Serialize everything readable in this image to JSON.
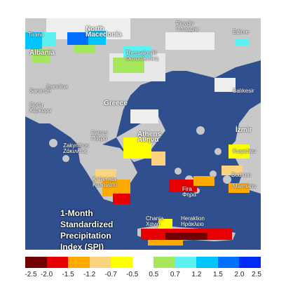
{
  "map": {
    "title_lines": [
      "1-Month",
      "Standardized",
      "Precipitation",
      "Index (SPI)"
    ],
    "places": [
      {
        "id": "plovdiv",
        "lines": [
          "Plovdiv",
          "Пловдив"
        ]
      },
      {
        "id": "north-macedonia",
        "lines": [
          "North",
          "Macedonia"
        ],
        "big": true
      },
      {
        "id": "edirne",
        "lines": [
          "Edirne"
        ]
      },
      {
        "id": "tirana",
        "lines": [
          "Tirana"
        ]
      },
      {
        "id": "albania",
        "lines": [
          "Albania"
        ],
        "big": true
      },
      {
        "id": "thessaloniki",
        "lines": [
          "Thessaloniki",
          "Θεσσαλονίκη"
        ]
      },
      {
        "id": "ioannina",
        "lines": [
          "Ioannina"
        ]
      },
      {
        "id": "sarande",
        "lines": [
          "Sarandë"
        ]
      },
      {
        "id": "corfu",
        "lines": [
          "Corfu",
          "Κέρκυρα"
        ]
      },
      {
        "id": "greece",
        "lines": [
          "Greece"
        ],
        "big": true
      },
      {
        "id": "balikesir",
        "lines": [
          "Balıkesir"
        ]
      },
      {
        "id": "izmir",
        "lines": [
          "İzmir"
        ],
        "big": true
      },
      {
        "id": "patras",
        "lines": [
          "Patras",
          "Πάτρα"
        ]
      },
      {
        "id": "athens",
        "lines": [
          "Athens",
          "Αθήνα"
        ],
        "big": true
      },
      {
        "id": "zakynthos",
        "lines": [
          "Zakynthos",
          "Ζάκυνθος"
        ]
      },
      {
        "id": "kusadasi",
        "lines": [
          "Kuşadası"
        ]
      },
      {
        "id": "kalamata",
        "lines": [
          "Kalamata",
          "Καλαμάτα"
        ]
      },
      {
        "id": "bodrum",
        "lines": [
          "Bodrum"
        ]
      },
      {
        "id": "marmaris",
        "lines": [
          "Marmaris"
        ]
      },
      {
        "id": "fira",
        "lines": [
          "Fira",
          "Φηρά"
        ]
      },
      {
        "id": "chania",
        "lines": [
          "Chania",
          "Χανιά"
        ]
      },
      {
        "id": "heraklion",
        "lines": [
          "Heraklion",
          "Ηράκλειο"
        ]
      }
    ]
  },
  "legend": {
    "ticks": [
      "-2.5",
      "-2.0",
      "-1.5",
      "-1.2",
      "-0.7",
      "-0.5",
      "0.5",
      "0.7",
      "1.2",
      "1.5",
      "2.0",
      "2.5"
    ],
    "colors": [
      "#730000",
      "#e60000",
      "#ffaa00",
      "#fcd37f",
      "#ffff00",
      "#ffffff",
      "#a6e65a",
      "#5df2f2",
      "#00c5ff",
      "#0070ff",
      "#002af5"
    ]
  },
  "colors": {
    "sea": "#2f4f8f",
    "land": "#c9c9c9",
    "snow_cloud": "#ececec"
  }
}
